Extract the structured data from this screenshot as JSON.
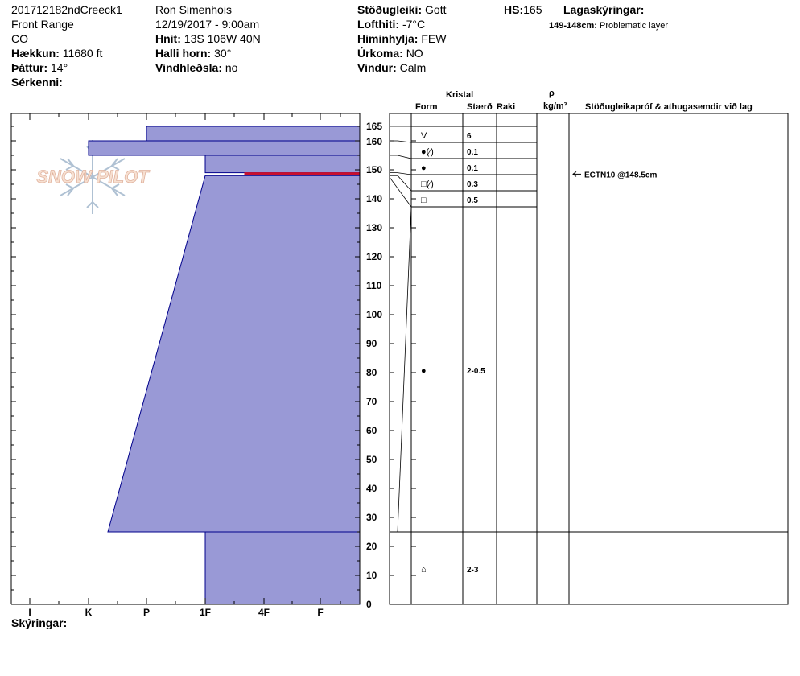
{
  "header": {
    "col1": {
      "line1": "201712182ndCreeck1",
      "line2": "Front Range",
      "line3": "CO",
      "elevation_label": "Hækkun:",
      "elevation_value": "11680 ft",
      "aspect_label": "Þáttur:",
      "aspect_value": "14°",
      "features_label": "Sérkenni:"
    },
    "col2": {
      "observer": "Ron Simenhois",
      "datetime": "12/19/2017 - 9:00am",
      "coords_label": "Hnit:",
      "coords_value": "13S 106W 40N",
      "slope_label": "Halli horn:",
      "slope_value": "30°",
      "wind_loading_label": "Vindhleðsla:",
      "wind_loading_value": "no"
    },
    "col3": {
      "stability_label": "Stöðugleiki:",
      "stability_value": "Gott",
      "air_temp_label": "Lofthiti:",
      "air_temp_value": "-7°C",
      "sky_label": "Himinhylja:",
      "sky_value": "FEW",
      "precip_label": "Úrkoma:",
      "precip_value": "NO",
      "wind_label": "Vindur:",
      "wind_value": "Calm"
    },
    "col4": {
      "hs_label": "HS:",
      "hs_value": "165",
      "layer_notes_label": "Lagaskýringar:",
      "layer_note_range": "149-148cm:",
      "layer_note_text": "Problematic layer"
    }
  },
  "logo": {
    "text": "SNOW PILOT"
  },
  "table_headers": {
    "crystal": "Kristal",
    "form": "Form",
    "size": "Stærð",
    "moisture": "Raki",
    "rho": "ρ",
    "density_unit": "kg/m³",
    "tests": "Stöðugleikapróf & athugasemdir við lag"
  },
  "footer": {
    "legend_label": "Skýringar:"
  },
  "colors": {
    "layer_fill": "#9999D6",
    "layer_stroke": "#00008B",
    "problem_layer": "#C8102E"
  },
  "chart_data": {
    "type": "snow-profile",
    "y_axis": {
      "min": 0,
      "max": 170,
      "ticks": [
        0,
        10,
        20,
        30,
        40,
        50,
        60,
        70,
        80,
        90,
        100,
        110,
        120,
        130,
        140,
        150,
        160,
        165
      ]
    },
    "hardness_scale": [
      "I",
      "K",
      "P",
      "1F",
      "4F",
      "F"
    ],
    "hardness_layers": [
      {
        "top": 165,
        "bottom": 160,
        "hardness_top": "P",
        "hardness_bottom": "P"
      },
      {
        "top": 160,
        "bottom": 155,
        "hardness_top": "K",
        "hardness_bottom": "K"
      },
      {
        "top": 155,
        "bottom": 149,
        "hardness_top": "1F",
        "hardness_bottom": "1F"
      },
      {
        "top": 149,
        "bottom": 148,
        "hardness_top": "4F-",
        "hardness_bottom": "4F-"
      },
      {
        "top": 148,
        "bottom": 25,
        "hardness_top": "1F",
        "hardness_bottom": "K+"
      },
      {
        "top": 25,
        "bottom": 0,
        "hardness_top": "1F",
        "hardness_bottom": "1F"
      }
    ],
    "crystal_rows": [
      {
        "top": 165,
        "bottom": 160,
        "form": "V",
        "size": "6"
      },
      {
        "top": 160,
        "bottom": 155,
        "form": "●(⁄)",
        "size": "0.1"
      },
      {
        "top": 155,
        "bottom": 149,
        "form": "●",
        "size": "0.1"
      },
      {
        "top": 149,
        "bottom": 148,
        "form": "□(⁄)",
        "size": "0.3"
      },
      {
        "top": 148,
        "bottom": 25,
        "form": "□",
        "size": "0.5"
      },
      {
        "top": 25,
        "bottom": 0,
        "form": "●",
        "size": "2-0.5"
      },
      {
        "top": 0,
        "bottom": 0,
        "form": "⌂",
        "size": "2-3"
      }
    ],
    "stability_tests": [
      {
        "depth": 148.5,
        "label": "ECTN10 @148.5cm"
      }
    ]
  }
}
